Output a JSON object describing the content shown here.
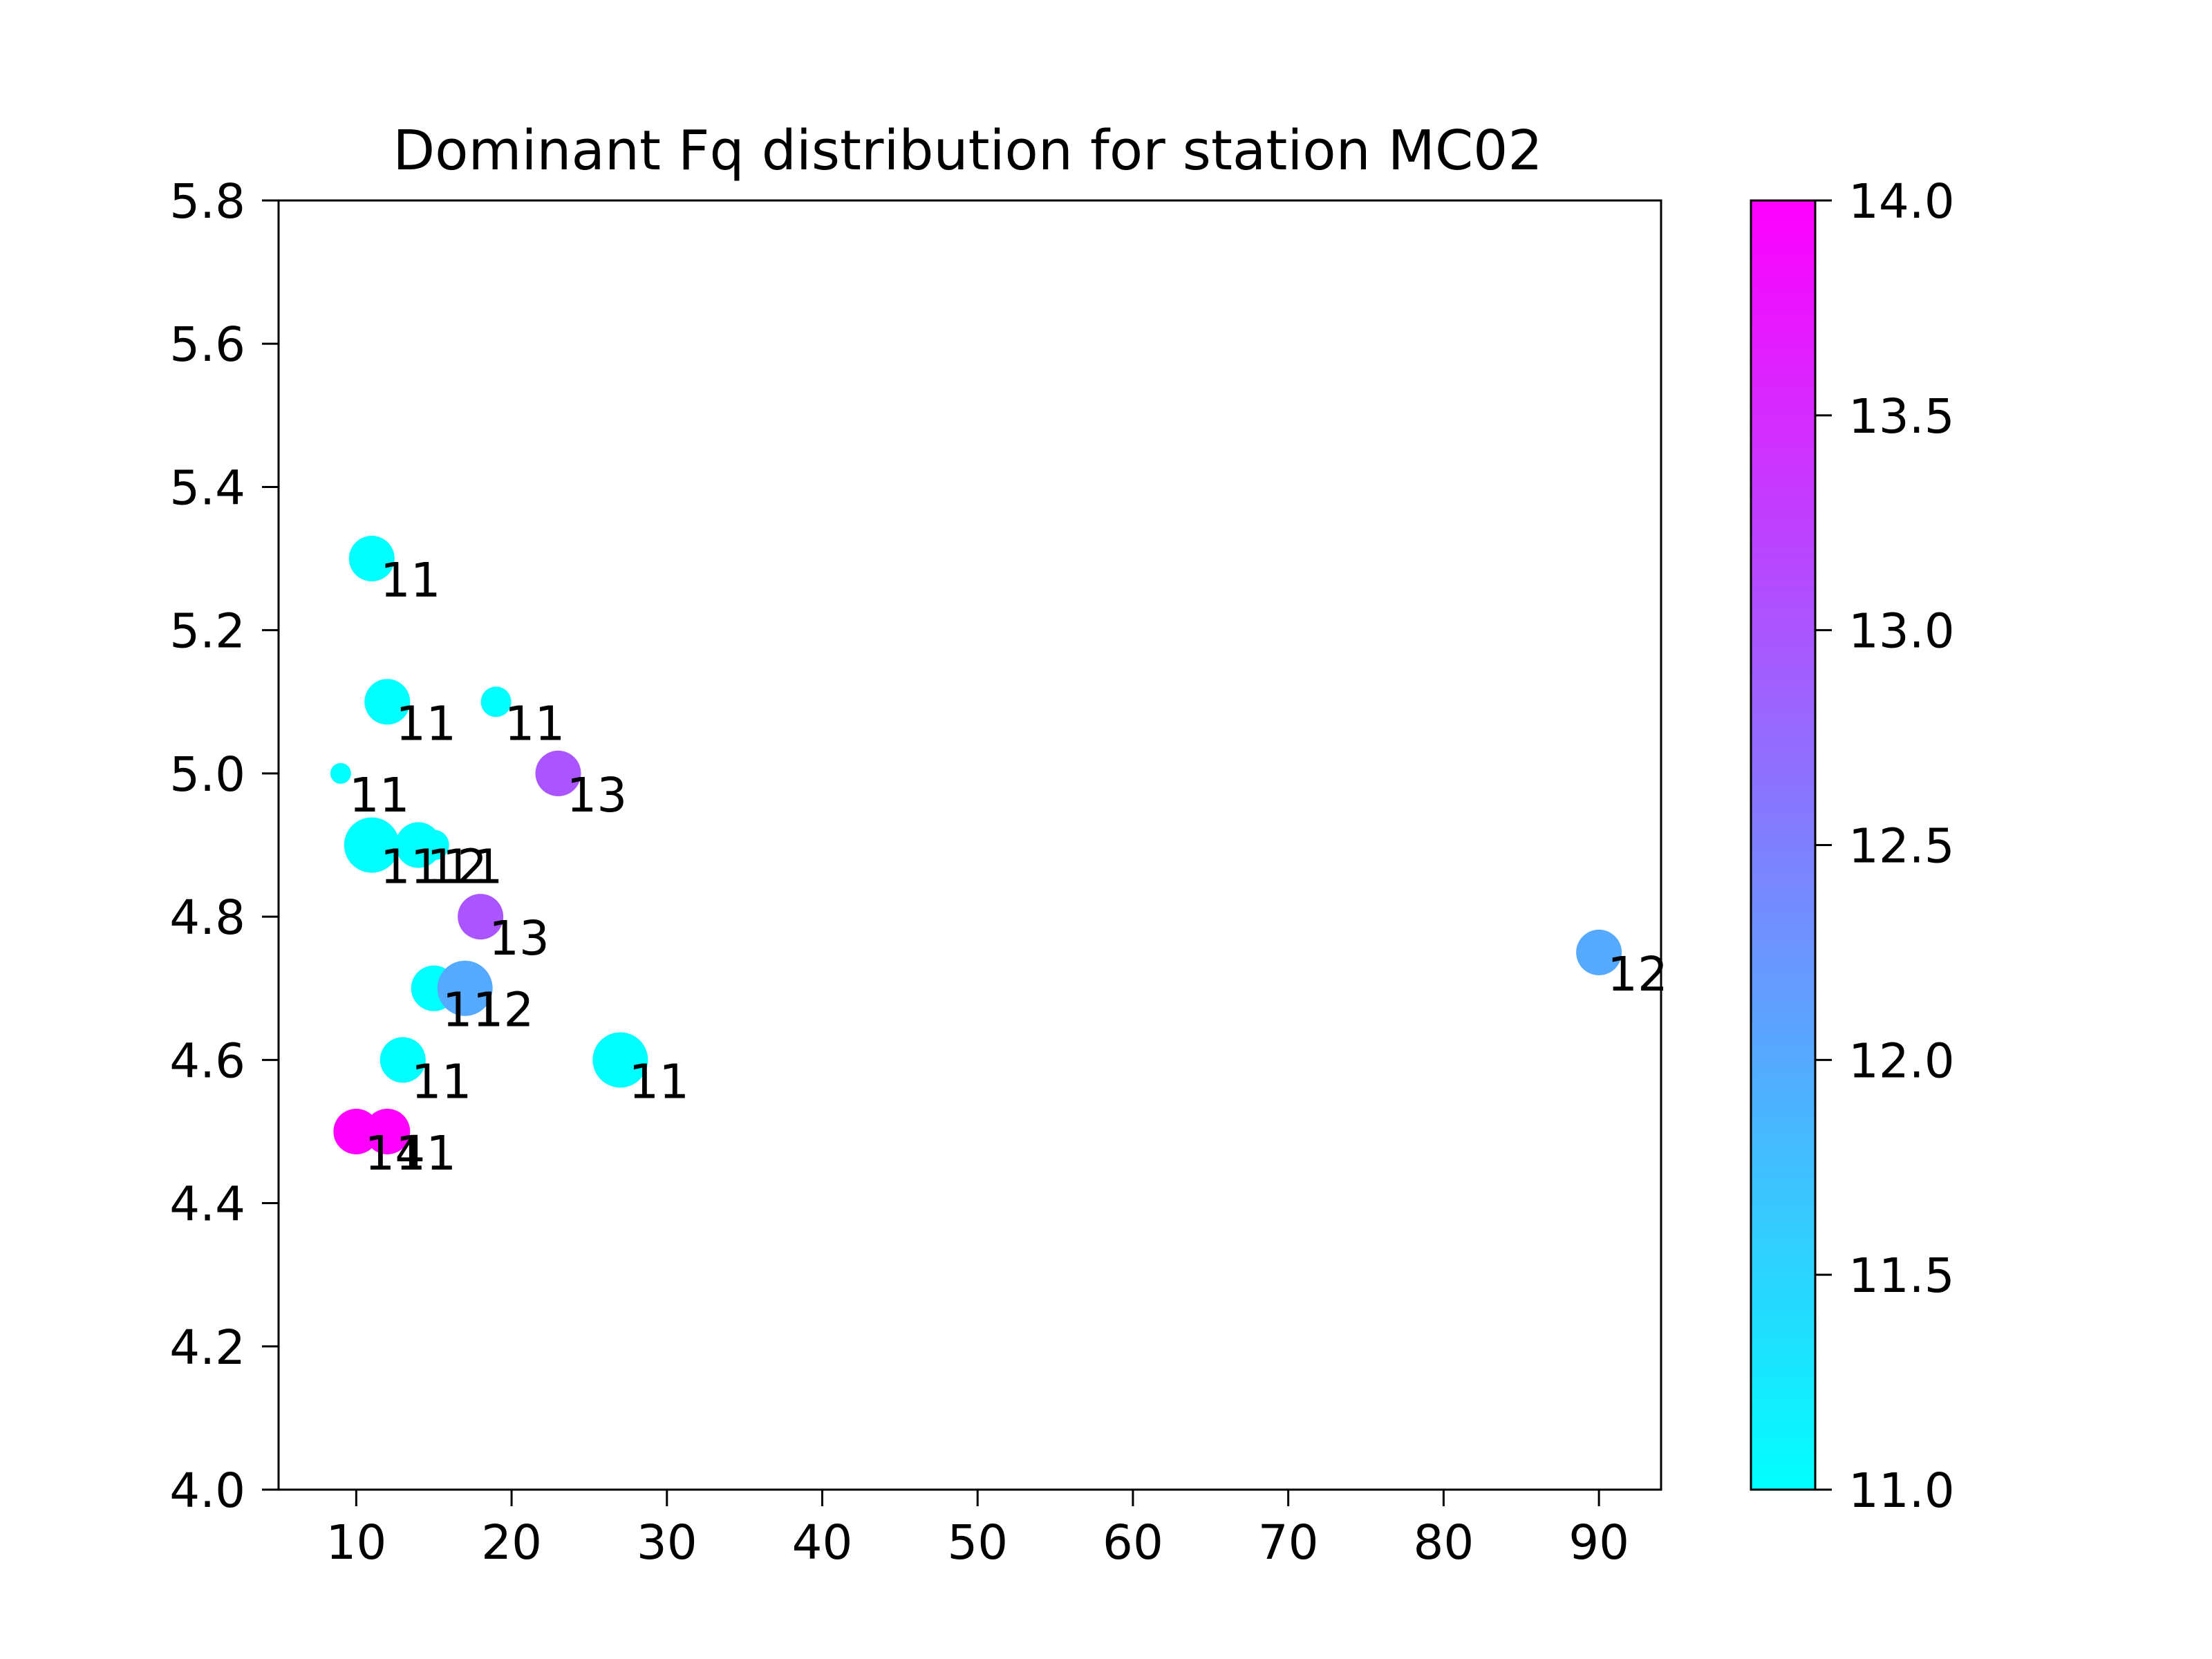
{
  "chart_data": {
    "type": "scatter",
    "title": "Dominant Fq distribution for station MC02",
    "xlabel": "",
    "ylabel": "",
    "xlim": [
      5,
      94
    ],
    "ylim": [
      4.0,
      5.8
    ],
    "x_ticks": [
      10,
      20,
      30,
      40,
      50,
      60,
      70,
      80,
      90
    ],
    "y_ticks": [
      4.0,
      4.2,
      4.4,
      4.6,
      4.8,
      5.0,
      5.2,
      5.4,
      5.6,
      5.8
    ],
    "x_tick_labels": [
      "10",
      "20",
      "30",
      "40",
      "50",
      "60",
      "70",
      "80",
      "90"
    ],
    "y_tick_labels": [
      "4.0",
      "4.2",
      "4.4",
      "4.6",
      "4.8",
      "5.0",
      "5.2",
      "5.4",
      "5.6",
      "5.8"
    ],
    "grid": false,
    "colormap": "cool",
    "colormap_colors": [
      "#00ffff",
      "#ff00ff"
    ],
    "colorbar": {
      "range": [
        11.0,
        14.0
      ],
      "ticks": [
        11.0,
        11.5,
        12.0,
        12.5,
        13.0,
        13.5,
        14.0
      ],
      "tick_labels": [
        "11.0",
        "11.5",
        "12.0",
        "12.5",
        "13.0",
        "13.5",
        "14.0"
      ]
    },
    "points": [
      {
        "x": 11,
        "y": 5.3,
        "value": 11,
        "size": 3,
        "label": "11"
      },
      {
        "x": 12,
        "y": 5.1,
        "value": 11,
        "size": 3,
        "label": "11"
      },
      {
        "x": 19,
        "y": 5.1,
        "value": 11,
        "size": 2,
        "label": "11"
      },
      {
        "x": 9,
        "y": 5.0,
        "value": 11,
        "size": 1,
        "label": "11"
      },
      {
        "x": 23,
        "y": 5.0,
        "value": 13,
        "size": 3,
        "label": "13"
      },
      {
        "x": 11,
        "y": 4.9,
        "value": 11,
        "size": 4,
        "label": "11"
      },
      {
        "x": 14,
        "y": 4.9,
        "value": 11,
        "size": 3,
        "label": "12"
      },
      {
        "x": 15,
        "y": 4.9,
        "value": 11,
        "size": 2,
        "label": "11"
      },
      {
        "x": 18,
        "y": 4.8,
        "value": 13,
        "size": 3,
        "label": "13"
      },
      {
        "x": 15,
        "y": 4.7,
        "value": 11,
        "size": 3,
        "label": "11"
      },
      {
        "x": 17,
        "y": 4.7,
        "value": 12,
        "size": 4,
        "label": "12"
      },
      {
        "x": 90,
        "y": 4.75,
        "value": 12,
        "size": 3,
        "label": "12"
      },
      {
        "x": 13,
        "y": 4.6,
        "value": 11,
        "size": 3,
        "label": "11"
      },
      {
        "x": 27,
        "y": 4.6,
        "value": 11,
        "size": 4,
        "label": "11"
      },
      {
        "x": 10,
        "y": 4.5,
        "value": 14,
        "size": 3,
        "label": "14"
      },
      {
        "x": 12,
        "y": 4.5,
        "value": 14,
        "size": 3,
        "label": "11"
      }
    ]
  }
}
